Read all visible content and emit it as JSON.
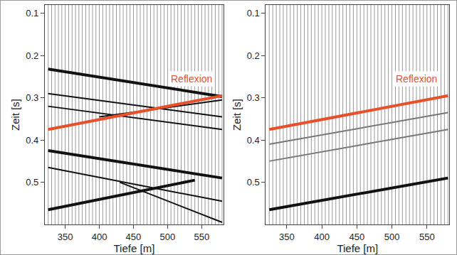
{
  "chart_data": [
    {
      "type": "line",
      "x_label": "Tiefe [m]",
      "y_label": "Zeit [s]",
      "xlim": [
        320,
        582
      ],
      "ylim": [
        0.6,
        0.08
      ],
      "xticks": [
        350,
        400,
        450,
        500,
        550
      ],
      "yticks": [
        0.1,
        0.2,
        0.3,
        0.4,
        0.5
      ],
      "wiggle_traces": {
        "color": "#9a9a9a",
        "x": [
          325,
          330,
          335,
          340,
          345,
          350,
          355,
          360,
          365,
          370,
          375,
          380,
          385,
          390,
          395,
          400,
          405,
          410,
          415,
          420,
          425,
          430,
          435,
          440,
          445,
          450,
          455,
          460,
          465,
          470,
          475,
          480,
          485,
          490,
          495,
          500,
          505,
          510,
          515,
          520,
          525,
          530,
          535,
          540,
          545,
          550,
          555,
          560,
          565,
          570,
          575,
          580
        ]
      },
      "series": [
        {
          "color": "#111111",
          "line_style": "thick",
          "x": [
            325,
            580
          ],
          "values": [
            0.232,
            0.297
          ]
        },
        {
          "color": "#111111",
          "line_style": "thin",
          "x": [
            325,
            580
          ],
          "values": [
            0.29,
            0.345
          ]
        },
        {
          "color": "#111111",
          "line_style": "thin",
          "x": [
            325,
            580
          ],
          "values": [
            0.32,
            0.375
          ]
        },
        {
          "color": "#111111",
          "line_style": "thin",
          "x": [
            400,
            580
          ],
          "values": [
            0.345,
            0.305
          ]
        },
        {
          "color": "#111111",
          "line_style": "thick",
          "x": [
            325,
            580
          ],
          "values": [
            0.425,
            0.49
          ]
        },
        {
          "color": "#111111",
          "line_style": "thin",
          "x": [
            325,
            580
          ],
          "values": [
            0.465,
            0.545
          ]
        },
        {
          "color": "#111111",
          "line_style": "thick",
          "x": [
            325,
            540
          ],
          "values": [
            0.565,
            0.495
          ]
        },
        {
          "color": "#111111",
          "line_style": "thin",
          "x": [
            430,
            580
          ],
          "values": [
            0.5,
            0.595
          ]
        },
        {
          "color": "#e8502a",
          "line_style": "thick",
          "x": [
            325,
            580
          ],
          "values": [
            0.375,
            0.295
          ]
        }
      ],
      "annotations": [
        {
          "text": "Reflexion",
          "x": 535,
          "y": 0.255,
          "color": "#e8502a"
        }
      ]
    },
    {
      "type": "line",
      "x_label": "Tiefe [m]",
      "y_label": "Zeit [s]",
      "xlim": [
        320,
        582
      ],
      "ylim": [
        0.6,
        0.08
      ],
      "xticks": [
        350,
        400,
        450,
        500,
        550
      ],
      "yticks": [
        0.1,
        0.2,
        0.3,
        0.4,
        0.5
      ],
      "wiggle_traces": {
        "color": "#9a9a9a",
        "x": [
          325,
          330,
          335,
          340,
          345,
          350,
          355,
          360,
          365,
          370,
          375,
          380,
          385,
          390,
          395,
          400,
          405,
          410,
          415,
          420,
          425,
          430,
          435,
          440,
          445,
          450,
          455,
          460,
          465,
          470,
          475,
          480,
          485,
          490,
          495,
          500,
          505,
          510,
          515,
          520,
          525,
          530,
          535,
          540,
          545,
          550,
          555,
          560,
          565,
          570,
          575,
          580
        ]
      },
      "series": [
        {
          "color": "#777777",
          "line_style": "thin",
          "x": [
            325,
            580
          ],
          "values": [
            0.41,
            0.335
          ]
        },
        {
          "color": "#777777",
          "line_style": "thin",
          "x": [
            325,
            580
          ],
          "values": [
            0.45,
            0.375
          ]
        },
        {
          "color": "#111111",
          "line_style": "thick",
          "x": [
            325,
            580
          ],
          "values": [
            0.565,
            0.49
          ]
        },
        {
          "color": "#e8502a",
          "line_style": "thick",
          "x": [
            325,
            580
          ],
          "values": [
            0.375,
            0.295
          ]
        }
      ],
      "annotations": [
        {
          "text": "Reflexion",
          "x": 535,
          "y": 0.255,
          "color": "#e8502a"
        }
      ]
    }
  ]
}
